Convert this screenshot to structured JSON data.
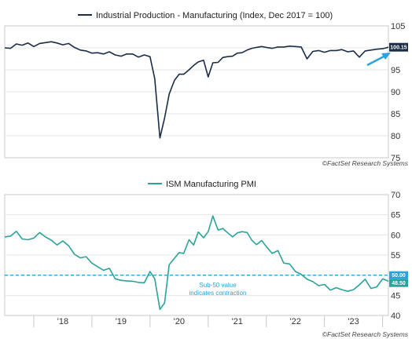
{
  "chart_data": [
    {
      "type": "line",
      "title": "",
      "legend": "top-left",
      "ylim": [
        75,
        105
      ],
      "yticks": [
        "75",
        "80",
        "85",
        "90",
        "95",
        "100",
        "105"
      ],
      "end_label": "100.15",
      "source": "©FactSet Research Systems",
      "series": [
        {
          "name": "Industrial Production - Manufacturing (Index, Dec 2017 = 100)",
          "color": "#1b2d45",
          "x": [
            2017.5,
            2017.6,
            2017.7,
            2017.8,
            2017.9,
            2018.0,
            2018.1,
            2018.2,
            2018.3,
            2018.4,
            2018.5,
            2018.6,
            2018.7,
            2018.8,
            2018.9,
            2019.0,
            2019.1,
            2019.2,
            2019.3,
            2019.4,
            2019.5,
            2019.6,
            2019.7,
            2019.8,
            2019.9,
            2020.0,
            2020.08,
            2020.17,
            2020.25,
            2020.33,
            2020.42,
            2020.5,
            2020.58,
            2020.67,
            2020.75,
            2020.83,
            2020.92,
            2021.0,
            2021.08,
            2021.17,
            2021.25,
            2021.33,
            2021.42,
            2021.5,
            2021.58,
            2021.67,
            2021.75,
            2021.83,
            2021.92,
            2022.0,
            2022.1,
            2022.2,
            2022.3,
            2022.4,
            2022.5,
            2022.6,
            2022.7,
            2022.8,
            2022.9,
            2023.0,
            2023.1,
            2023.2,
            2023.3,
            2023.4,
            2023.5,
            2023.6,
            2023.7,
            2023.8,
            2023.9,
            2024.0,
            2024.1
          ],
          "values": [
            100.0,
            99.9,
            100.9,
            100.6,
            101.1,
            100.3,
            101.0,
            101.2,
            101.4,
            101.1,
            100.7,
            101.0,
            100.1,
            99.5,
            99.3,
            98.8,
            98.9,
            98.6,
            99.1,
            98.4,
            98.1,
            98.6,
            98.6,
            97.9,
            98.4,
            98.0,
            93.0,
            79.5,
            84.0,
            89.5,
            92.6,
            94.0,
            94.0,
            95.0,
            96.0,
            96.8,
            97.2,
            93.4,
            96.6,
            96.7,
            97.8,
            98.0,
            98.1,
            98.8,
            98.9,
            99.5,
            99.9,
            100.1,
            100.3,
            100.1,
            99.9,
            100.2,
            100.2,
            100.4,
            100.3,
            100.2,
            97.5,
            99.2,
            99.4,
            99.0,
            99.4,
            99.4,
            99.6,
            99.1,
            99.3,
            97.9,
            99.3,
            99.5,
            99.7,
            99.8,
            100.15
          ]
        }
      ]
    },
    {
      "type": "line",
      "title": "",
      "legend": "top-left",
      "ylim": [
        40,
        70
      ],
      "yticks": [
        "40",
        "45",
        "50",
        "55",
        "60",
        "65",
        "70"
      ],
      "x_categories": [
        "'18",
        "'19",
        "'20",
        "'21",
        "'22",
        "'23"
      ],
      "reference_line": {
        "value": 50,
        "label": "50.00",
        "color": "#29a3e0"
      },
      "annotation": [
        "Sub-50 value",
        "indicates contraction"
      ],
      "end_label": "48.50",
      "source": "©FactSet Research Systems",
      "series": [
        {
          "name": "ISM Manufacturing PMI",
          "color": "#2aa39a",
          "x": [
            2017.5,
            2017.6,
            2017.7,
            2017.8,
            2017.9,
            2018.0,
            2018.1,
            2018.2,
            2018.3,
            2018.4,
            2018.5,
            2018.6,
            2018.7,
            2018.8,
            2018.9,
            2019.0,
            2019.1,
            2019.2,
            2019.3,
            2019.4,
            2019.5,
            2019.6,
            2019.7,
            2019.8,
            2019.9,
            2020.0,
            2020.08,
            2020.17,
            2020.25,
            2020.33,
            2020.42,
            2020.5,
            2020.58,
            2020.67,
            2020.75,
            2020.83,
            2020.92,
            2021.0,
            2021.08,
            2021.17,
            2021.25,
            2021.33,
            2021.42,
            2021.5,
            2021.58,
            2021.67,
            2021.75,
            2021.83,
            2021.92,
            2022.0,
            2022.1,
            2022.2,
            2022.3,
            2022.4,
            2022.5,
            2022.6,
            2022.7,
            2022.8,
            2022.9,
            2023.0,
            2023.1,
            2023.2,
            2023.3,
            2023.4,
            2023.5,
            2023.6,
            2023.7,
            2023.8,
            2023.9,
            2024.0,
            2024.1
          ],
          "values": [
            59.5,
            59.7,
            60.9,
            59.0,
            58.8,
            59.2,
            60.6,
            59.5,
            58.7,
            57.5,
            58.5,
            57.3,
            55.2,
            54.3,
            54.6,
            53.0,
            52.1,
            51.2,
            51.7,
            49.1,
            48.7,
            48.6,
            48.5,
            48.2,
            48.1,
            50.9,
            49.1,
            41.5,
            43.1,
            52.6,
            54.2,
            55.6,
            55.4,
            58.8,
            57.5,
            60.7,
            59.3,
            60.8,
            64.7,
            61.2,
            61.6,
            60.6,
            59.5,
            60.5,
            60.8,
            60.6,
            58.7,
            57.6,
            58.6,
            57.1,
            55.4,
            56.1,
            53.0,
            52.8,
            50.9,
            50.2,
            49.0,
            48.4,
            47.4,
            47.7,
            46.3,
            46.9,
            46.4,
            46.0,
            46.4,
            47.6,
            49.0,
            46.7,
            47.1,
            49.1,
            48.5
          ]
        }
      ]
    }
  ]
}
